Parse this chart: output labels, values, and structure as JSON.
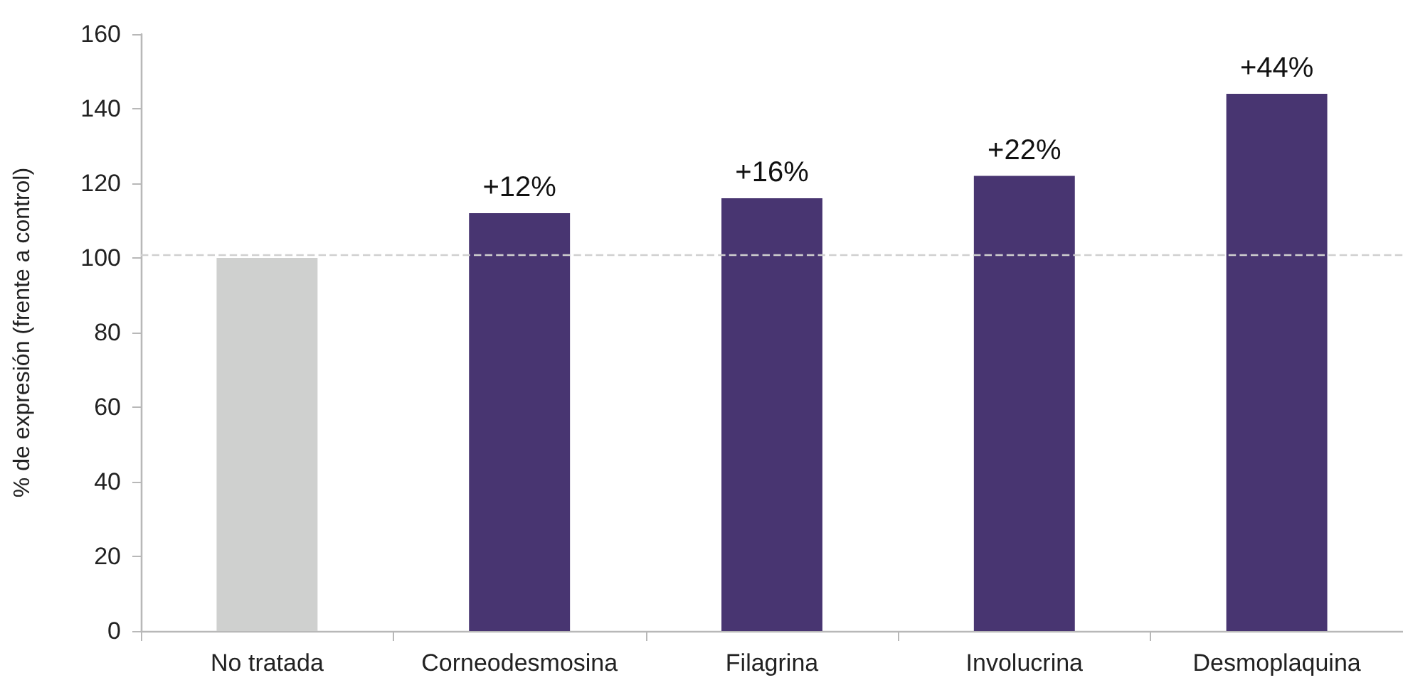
{
  "chart_data": {
    "type": "bar",
    "ylabel": "% de expresión (frente a control)",
    "categories": [
      "No tratada",
      "Corneodesmosina",
      "Filagrina",
      "Involucrina",
      "Desmoplaquina"
    ],
    "values": [
      100,
      112,
      116,
      122,
      144
    ],
    "colors": [
      "#cfd0cf",
      "#483571",
      "#483571",
      "#483571",
      "#483571"
    ],
    "annotations": [
      {
        "text": "+12%",
        "x": "Corneodesmosina",
        "y": 112
      },
      {
        "text": "+16%",
        "x": "Filagrina",
        "y": 116
      },
      {
        "text": "+22%",
        "x": "Involucrina",
        "y": 122
      },
      {
        "text": "+44%",
        "x": "Desmoplaquina",
        "y": 144
      }
    ],
    "ylim": [
      0,
      160
    ],
    "yticks": [
      0,
      20,
      40,
      60,
      80,
      100,
      120,
      140,
      160
    ],
    "ref_lines": [
      {
        "axis": "y",
        "value": 101,
        "color": "#d0d0d0",
        "line_style": "dashed"
      }
    ]
  }
}
